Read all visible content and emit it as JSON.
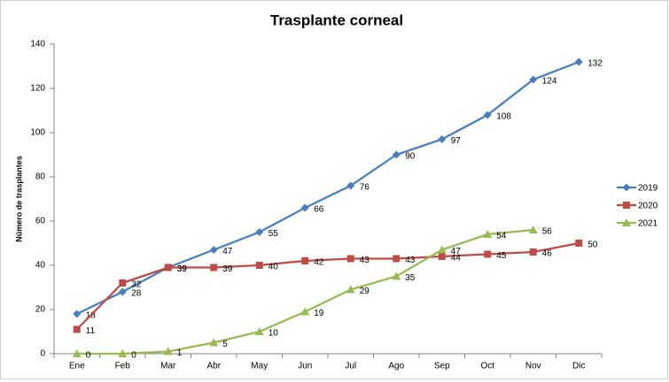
{
  "chart_data": {
    "type": "line",
    "title": "Trasplante corneal",
    "y_label": "Número de trasplantes",
    "categories": [
      "Ene",
      "Feb",
      "Mar",
      "Abr",
      "May",
      "Jun",
      "Jul",
      "Ago",
      "Sep",
      "Oct",
      "Nov",
      "Dic"
    ],
    "series": [
      {
        "name": "2019",
        "color": "#4a7ebb",
        "marker": "diamond",
        "values": [
          18,
          28,
          39,
          47,
          55,
          66,
          76,
          90,
          97,
          108,
          124,
          132
        ]
      },
      {
        "name": "2020",
        "color": "#be4b48",
        "marker": "square",
        "values": [
          11,
          32,
          39,
          39,
          40,
          42,
          43,
          43,
          44,
          45,
          46,
          50
        ]
      },
      {
        "name": "2021",
        "color": "#98b954",
        "marker": "triangle",
        "values": [
          0,
          0,
          1,
          5,
          10,
          19,
          29,
          35,
          47,
          54,
          56,
          null
        ]
      }
    ],
    "ylim": [
      0,
      140
    ],
    "yticks": [
      0,
      20,
      40,
      60,
      80,
      100,
      120,
      140
    ],
    "grid": false,
    "legend": "right",
    "data_labels": true
  }
}
